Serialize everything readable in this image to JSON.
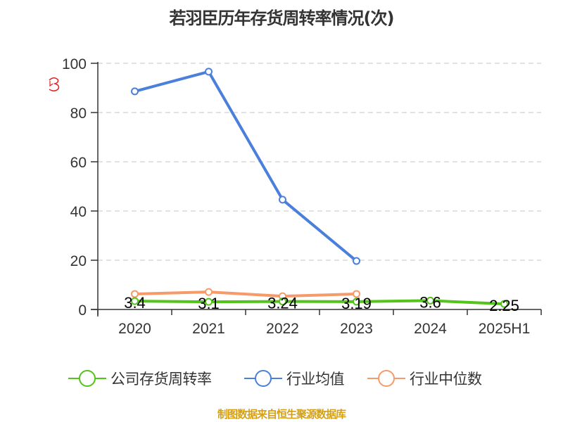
{
  "title": "若羽臣历年存货周转率情况(次)",
  "source": "制图数据来自恒生聚源数据库",
  "colors": {
    "company": "#52c41a",
    "industry_avg": "#4a7fdb",
    "industry_median": "#f79a6a",
    "grid": "#d9d9d9",
    "axis": "#333333",
    "source_text": "#d4a017"
  },
  "legend": {
    "items": [
      {
        "name": "公司存货周转率",
        "color": "#52c41a"
      },
      {
        "name": "行业均值",
        "color": "#4a7fdb"
      },
      {
        "name": "行业中位数",
        "color": "#f79a6a"
      }
    ]
  },
  "chart_data": {
    "type": "line",
    "title": "若羽臣历年存货周转率情况(次)",
    "xlabel": "",
    "ylabel": "",
    "categories": [
      "2020",
      "2021",
      "2022",
      "2023",
      "2024",
      "2025H1"
    ],
    "ylim": [
      0,
      100
    ],
    "yticks": [
      0,
      20,
      40,
      60,
      80,
      100
    ],
    "grid": true,
    "legend_position": "bottom",
    "series": [
      {
        "name": "公司存货周转率",
        "values": [
          3.4,
          3.1,
          3.24,
          3.19,
          3.6,
          2.25
        ],
        "labels_shown": true
      },
      {
        "name": "行业均值",
        "values": [
          88.6,
          96.6,
          44.6,
          19.7,
          null,
          null
        ]
      },
      {
        "name": "行业中位数",
        "values": [
          6.3,
          7.1,
          5.4,
          6.3,
          null,
          null
        ]
      }
    ],
    "annotations": [
      "3.4",
      "3.1",
      "3.24",
      "3.19",
      "3.6",
      "2.25"
    ]
  }
}
